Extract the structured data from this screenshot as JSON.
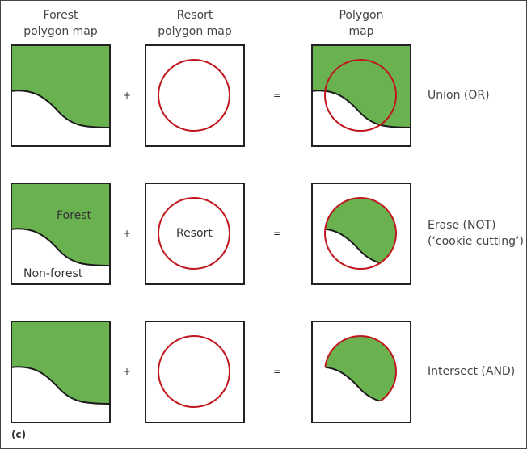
{
  "headers": {
    "forest": [
      "Forest",
      "polygon map"
    ],
    "resort": [
      "Resort",
      "polygon map"
    ],
    "result": [
      "Polygon",
      "map"
    ]
  },
  "operators": {
    "plus": "+",
    "equals": "="
  },
  "rows": [
    {
      "operation": [
        "Union (OR)"
      ],
      "result_type": "union"
    },
    {
      "operation": [
        "Erase (NOT)",
        "(‘cookie cutting’)"
      ],
      "result_type": "erase"
    },
    {
      "operation": [
        "Intersect (AND)"
      ],
      "result_type": "intersect"
    }
  ],
  "labels": {
    "forest": "Forest",
    "non_forest": "Non-forest",
    "resort": "Resort"
  },
  "panel_tag": "(c)",
  "colors": {
    "forest_fill": "#6ab150",
    "resort_outline": "#c0161e",
    "boundary": "#1a1a1a",
    "frame": "#222222"
  }
}
